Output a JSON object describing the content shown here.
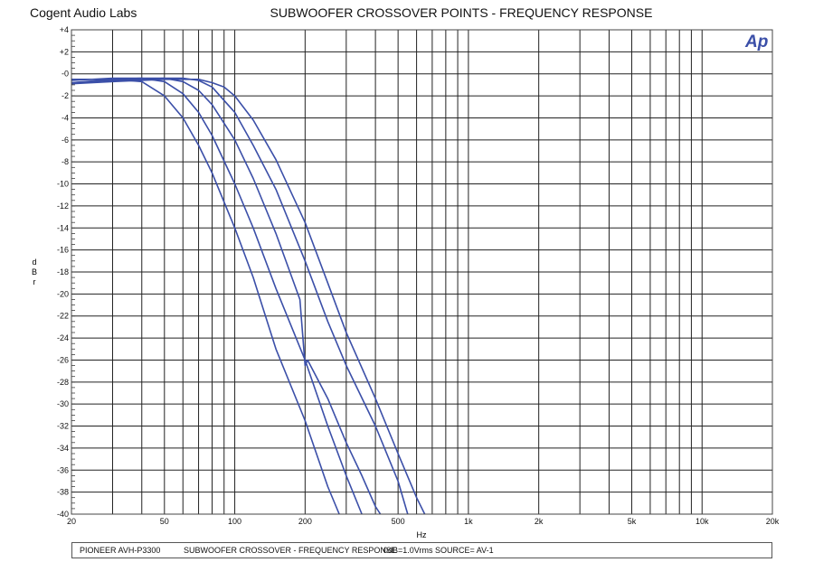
{
  "header": {
    "company": "Cogent Audio Labs",
    "title": "SUBWOOFER CROSSOVER POINTS  -  FREQUENCY RESPONSE",
    "logo_text": "Ap"
  },
  "footer": {
    "model": "PIONEER AVH-P3300",
    "description": "SUBWOOFER CROSSOVER  -  FREQUENCY RESPONSE",
    "reference": "0dB=1.0Vrms",
    "source": "SOURCE= AV-1"
  },
  "chart_data": {
    "type": "line",
    "title": "SUBWOOFER CROSSOVER POINTS  -  FREQUENCY RESPONSE",
    "xlabel": "Hz",
    "ylabel": "dBr",
    "x_scale": "log",
    "xlim": [
      20,
      20000
    ],
    "ylim": [
      -40,
      4
    ],
    "grid": true,
    "line_color": "#3b4fa8",
    "y_ticks": [
      "+4",
      "+2",
      "-0",
      "-2",
      "-4",
      "-6",
      "-8",
      "-10",
      "-12",
      "-14",
      "-16",
      "-18",
      "-20",
      "-22",
      "-24",
      "-26",
      "-28",
      "-30",
      "-32",
      "-34",
      "-36",
      "-38",
      "-40"
    ],
    "x_ticks": [
      {
        "label": "20",
        "value": 20
      },
      {
        "label": "50",
        "value": 50
      },
      {
        "label": "100",
        "value": 100
      },
      {
        "label": "200",
        "value": 200
      },
      {
        "label": "500",
        "value": 500
      },
      {
        "label": "1k",
        "value": 1000
      },
      {
        "label": "2k",
        "value": 2000
      },
      {
        "label": "5k",
        "value": 5000
      },
      {
        "label": "10k",
        "value": 10000
      },
      {
        "label": "20k",
        "value": 20000
      }
    ],
    "series": [
      {
        "x": [
          20,
          30,
          40,
          50,
          60,
          70,
          80,
          100,
          120,
          150,
          200,
          250,
          280
        ],
        "y": [
          -0.5,
          -0.5,
          -0.7,
          -2.0,
          -4.0,
          -6.5,
          -9.0,
          -14.0,
          -18.5,
          -25.0,
          -31.5,
          -37.5,
          -40
        ]
      },
      {
        "x": [
          20,
          30,
          40,
          50,
          60,
          70,
          80,
          100,
          120,
          150,
          200,
          250,
          300,
          350
        ],
        "y": [
          -0.6,
          -0.4,
          -0.4,
          -0.7,
          -1.8,
          -3.5,
          -5.6,
          -10.0,
          -14.0,
          -19.5,
          -26.0,
          -32.0,
          -36.5,
          -40
        ]
      },
      {
        "x": [
          20,
          30,
          40,
          50,
          60,
          70,
          80,
          100,
          120,
          150,
          190,
          200,
          205,
          250,
          300,
          350,
          400,
          420
        ],
        "y": [
          -0.8,
          -0.5,
          -0.4,
          -0.4,
          -0.7,
          -1.5,
          -2.8,
          -6.0,
          -9.5,
          -14.5,
          -20.5,
          -26.5,
          -26.0,
          -29.5,
          -33.5,
          -36.5,
          -39.3,
          -40
        ]
      },
      {
        "x": [
          20,
          30,
          40,
          50,
          60,
          70,
          80,
          100,
          120,
          150,
          200,
          250,
          300,
          400,
          500,
          550
        ],
        "y": [
          -0.8,
          -0.6,
          -0.5,
          -0.4,
          -0.4,
          -0.6,
          -1.2,
          -3.5,
          -6.5,
          -10.5,
          -17.0,
          -22.5,
          -26.5,
          -32.0,
          -37.0,
          -40
        ]
      },
      {
        "x": [
          20,
          30,
          40,
          50,
          60,
          70,
          80,
          90,
          100,
          120,
          150,
          200,
          250,
          300,
          400,
          500,
          600,
          650
        ],
        "y": [
          -0.9,
          -0.7,
          -0.6,
          -0.5,
          -0.5,
          -0.5,
          -0.8,
          -1.2,
          -2.0,
          -4.2,
          -7.8,
          -13.5,
          -19.0,
          -23.5,
          -29.5,
          -34.5,
          -38.5,
          -40
        ]
      }
    ]
  }
}
